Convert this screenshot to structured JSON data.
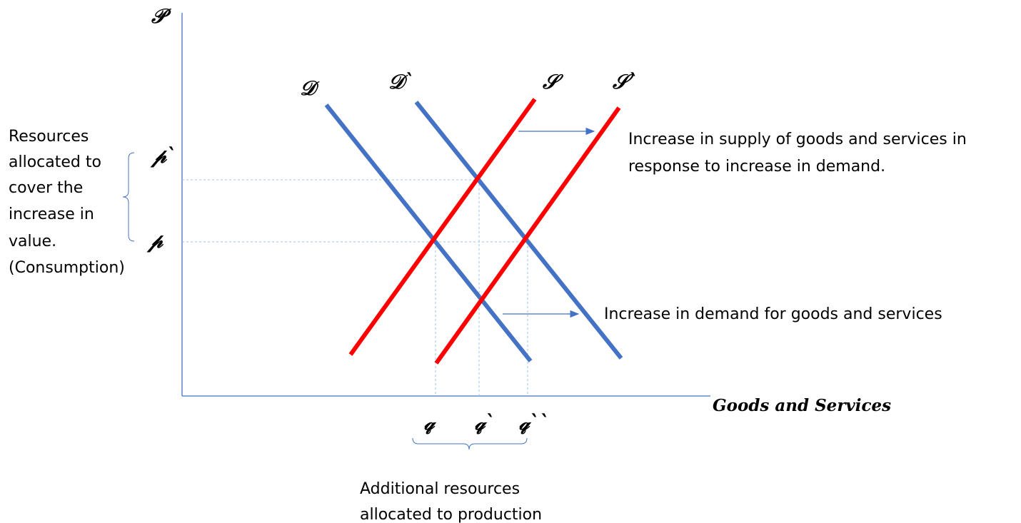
{
  "axes": {
    "y_label": "𝒫",
    "x_label": "Goods and Services"
  },
  "curves": {
    "demand": {
      "label": "𝒟",
      "color": "#4472c4"
    },
    "demand_shifted": {
      "label": "𝒟`",
      "color": "#4472c4"
    },
    "supply": {
      "label": "𝒮",
      "color": "#ff0000"
    },
    "supply_shifted": {
      "label": "𝒮`",
      "color": "#ff0000"
    }
  },
  "price_ticks": {
    "p_prime": "𝓅`",
    "p": "𝓅"
  },
  "quantity_ticks": {
    "q": "𝓆",
    "q_prime": "𝓆`",
    "q_double_prime": "𝓆``"
  },
  "annotations": {
    "left_bracket_text": [
      "Resources",
      "allocated to",
      "cover the",
      "increase in",
      "value.",
      "(Consumption)"
    ],
    "supply_shift_text": [
      "Increase in supply of goods and services in",
      "response to increase in demand."
    ],
    "demand_shift_text": "Increase in demand for goods and services",
    "bottom_bracket_text": [
      "Additional resources",
      "allocated to production"
    ]
  },
  "colors": {
    "axis": "#4472c4",
    "guide": "#9dc3e6",
    "arrow": "#4472c4",
    "supply": "#ff0000",
    "demand": "#4472c4"
  }
}
